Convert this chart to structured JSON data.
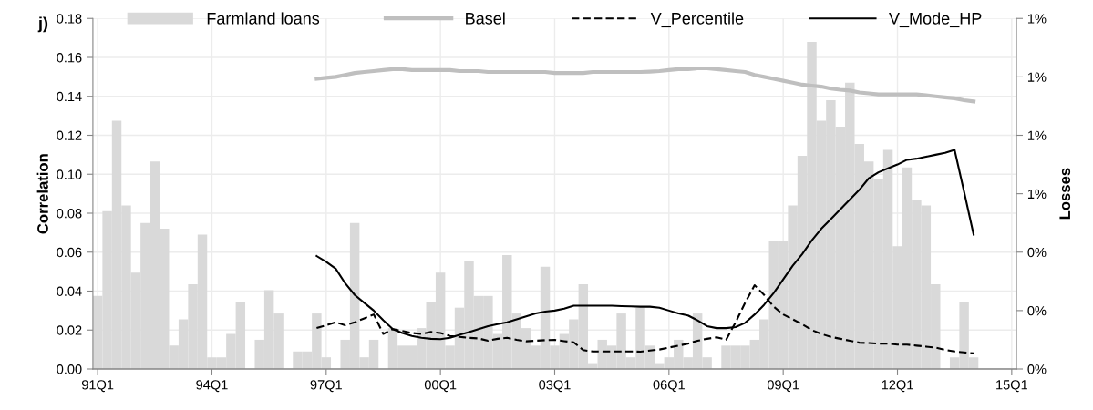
{
  "chart_data": {
    "type": "bar",
    "title": "j)",
    "ylabel": "Correlation",
    "y2label": "Losses",
    "categories": [
      "91Q1",
      null,
      null,
      null,
      null,
      null,
      null,
      null,
      null,
      null,
      null,
      null,
      "94Q1",
      null,
      null,
      null,
      null,
      null,
      null,
      null,
      null,
      null,
      null,
      null,
      "97Q1",
      null,
      null,
      null,
      null,
      null,
      null,
      null,
      null,
      null,
      null,
      null,
      "00Q1",
      null,
      null,
      null,
      null,
      null,
      null,
      null,
      null,
      null,
      null,
      null,
      "03Q1",
      null,
      null,
      null,
      null,
      null,
      null,
      null,
      null,
      null,
      null,
      null,
      "06Q1",
      null,
      null,
      null,
      null,
      null,
      null,
      null,
      null,
      null,
      null,
      null,
      "09Q1",
      null,
      null,
      null,
      null,
      null,
      null,
      null,
      null,
      null,
      null,
      null,
      "12Q1",
      null,
      null,
      null,
      null,
      null,
      null,
      null,
      null,
      null,
      null,
      null,
      "15Q1"
    ],
    "ylim": [
      0,
      0.18
    ],
    "yticks": [
      {
        "value": 0,
        "label": "0.00"
      },
      {
        "value": 0.02,
        "label": "0.02"
      },
      {
        "value": 0.04,
        "label": "0.04"
      },
      {
        "value": 0.06,
        "label": "0.06"
      },
      {
        "value": 0.08,
        "label": "0.08"
      },
      {
        "value": 0.1,
        "label": "0.10"
      },
      {
        "value": 0.12,
        "label": "0.12"
      },
      {
        "value": 0.14,
        "label": "0.14"
      },
      {
        "value": 0.16,
        "label": "0.16"
      },
      {
        "value": 0.18,
        "label": "0.18"
      }
    ],
    "y2lim": [
      0,
      1.2
    ],
    "y2ticks": [
      {
        "value": 0,
        "label": "0%"
      },
      {
        "value": 0.2,
        "label": "0%"
      },
      {
        "value": 0.4,
        "label": "0%"
      },
      {
        "value": 0.6,
        "label": "1%"
      },
      {
        "value": 0.8,
        "label": "1%"
      },
      {
        "value": 1.0,
        "label": "1%"
      },
      {
        "value": 1.2,
        "label": "1%"
      }
    ],
    "grid": true,
    "legend": "top",
    "series": [
      {
        "name": "Farmland loans",
        "axis": "y2",
        "color": "#d9d9d9",
        "values": [
          0.25,
          0.54,
          0.85,
          0.56,
          0.33,
          0.5,
          0.71,
          0.48,
          0.08,
          0.17,
          0.29,
          0.46,
          0.04,
          0.04,
          0.12,
          0.23,
          0,
          0.1,
          0.27,
          0.19,
          0,
          0.06,
          0.06,
          0.19,
          0.04,
          0,
          0.1,
          0.5,
          0.04,
          0.1,
          0,
          0.14,
          0.08,
          0.08,
          0.14,
          0.23,
          0.33,
          0.08,
          0.21,
          0.37,
          0.25,
          0.25,
          0.12,
          0.39,
          0.19,
          0.14,
          0.08,
          0.35,
          0.08,
          0.12,
          0.17,
          0.29,
          0.02,
          0.1,
          0.08,
          0.19,
          0.04,
          0.21,
          0.08,
          0.02,
          0.04,
          0.1,
          0.04,
          0.19,
          0.04,
          0,
          0.08,
          0.08,
          0.08,
          0.1,
          0.17,
          0.44,
          0.44,
          0.56,
          0.73,
          1.12,
          0.85,
          0.92,
          0.83,
          0.98,
          0.77,
          0.71,
          0.65,
          0.75,
          0.42,
          0.69,
          0.58,
          0.56,
          0.29,
          0,
          0.04,
          0.23,
          0.04,
          null,
          null,
          null,
          null
        ]
      },
      {
        "name": "Basel",
        "type": "line",
        "color": "#bfbfbf",
        "line_style": "solid",
        "values": [
          null,
          null,
          null,
          null,
          null,
          null,
          null,
          null,
          null,
          null,
          null,
          null,
          null,
          null,
          null,
          null,
          null,
          null,
          null,
          null,
          null,
          null,
          null,
          0.149,
          0.1495,
          0.15,
          0.151,
          0.152,
          0.1525,
          0.153,
          0.1535,
          0.154,
          0.154,
          0.1535,
          0.1535,
          0.1535,
          0.1535,
          0.1535,
          0.153,
          0.153,
          0.153,
          0.1525,
          0.1525,
          0.1525,
          0.1525,
          0.1525,
          0.1525,
          0.1525,
          0.152,
          0.152,
          0.152,
          0.152,
          0.1525,
          0.1525,
          0.1525,
          0.1525,
          0.1525,
          0.1525,
          0.1527,
          0.153,
          0.1535,
          0.154,
          0.154,
          0.1544,
          0.1544,
          0.154,
          0.1535,
          0.153,
          0.1525,
          0.151,
          0.15,
          0.149,
          0.148,
          0.147,
          0.146,
          0.1455,
          0.145,
          0.144,
          0.1434,
          0.143,
          0.142,
          0.1415,
          0.141,
          0.141,
          0.141,
          0.141,
          0.141,
          0.1405,
          0.14,
          0.1395,
          0.139,
          0.138,
          0.1374,
          null,
          null,
          null,
          null
        ]
      },
      {
        "name": "V_Percentile",
        "type": "line",
        "color": "#000000",
        "line_style": "dashed",
        "values": [
          null,
          null,
          null,
          null,
          null,
          null,
          null,
          null,
          null,
          null,
          null,
          null,
          null,
          null,
          null,
          null,
          null,
          null,
          null,
          null,
          null,
          null,
          null,
          0.021,
          0.0225,
          0.024,
          0.0225,
          0.024,
          0.026,
          0.028,
          0.018,
          0.0205,
          0.0195,
          0.0185,
          0.018,
          0.019,
          0.0185,
          0.017,
          0.0165,
          0.016,
          0.0157,
          0.0145,
          0.0155,
          0.016,
          0.015,
          0.0142,
          0.0145,
          0.0148,
          0.015,
          0.0143,
          0.0137,
          0.0097,
          0.009,
          0.009,
          0.009,
          0.009,
          0.009,
          0.0089,
          0.0095,
          0.01,
          0.011,
          0.012,
          0.013,
          0.0145,
          0.0155,
          0.0163,
          0.015,
          0.024,
          0.034,
          0.043,
          0.038,
          0.032,
          0.028,
          0.0255,
          0.023,
          0.02,
          0.018,
          0.0165,
          0.0155,
          0.0145,
          0.0135,
          0.0133,
          0.013,
          0.013,
          0.0125,
          0.0125,
          0.012,
          0.0115,
          0.011,
          0.0098,
          0.009,
          0.0085,
          0.008,
          null,
          null,
          null,
          null
        ]
      },
      {
        "name": "V_Mode_HP",
        "type": "line",
        "color": "#000000",
        "line_style": "solid",
        "values": [
          null,
          null,
          null,
          null,
          null,
          null,
          null,
          null,
          null,
          null,
          null,
          null,
          null,
          null,
          null,
          null,
          null,
          null,
          null,
          null,
          null,
          null,
          null,
          0.058,
          0.055,
          0.0515,
          0.044,
          0.038,
          0.034,
          0.03,
          0.025,
          0.0205,
          0.0185,
          0.017,
          0.016,
          0.0155,
          0.0153,
          0.016,
          0.0175,
          0.019,
          0.0205,
          0.022,
          0.023,
          0.024,
          0.0255,
          0.027,
          0.0285,
          0.0295,
          0.03,
          0.031,
          0.0325,
          0.0325,
          0.0325,
          0.0325,
          0.0325,
          0.0323,
          0.0322,
          0.032,
          0.032,
          0.0315,
          0.03,
          0.0285,
          0.0275,
          0.025,
          0.022,
          0.021,
          0.021,
          0.0215,
          0.0237,
          0.028,
          0.033,
          0.039,
          0.046,
          0.053,
          0.059,
          0.066,
          0.072,
          0.077,
          0.082,
          0.087,
          0.092,
          0.098,
          0.101,
          0.103,
          0.105,
          0.1074,
          0.108,
          0.109,
          0.11,
          0.111,
          0.1125,
          0.091,
          0.069,
          null,
          null,
          null,
          null
        ]
      }
    ]
  }
}
